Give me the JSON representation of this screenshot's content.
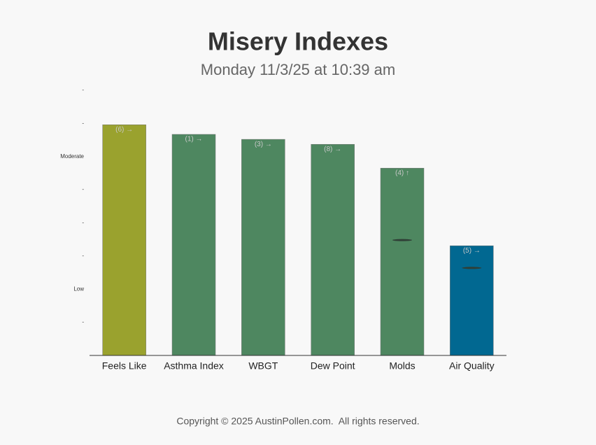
{
  "chart_data": {
    "type": "bar",
    "title": "Misery Indexes",
    "subtitle": "Monday 11/3/25 at 10:39 am",
    "categories": [
      "Feels Like",
      "Asthma Index",
      "WBGT",
      "Dew Point",
      "Molds",
      "Air Quality"
    ],
    "values": [
      6.96,
      6.67,
      6.52,
      6.37,
      5.65,
      3.31
    ],
    "bar_labels": [
      "(6) →",
      "(1) →",
      "(3) →",
      "(8) →",
      "(4) ↑",
      "(5) →"
    ],
    "marker_values": [
      null,
      null,
      null,
      null,
      3.48,
      2.64
    ],
    "colors": [
      "#9aa22e",
      "#4e8760",
      "#4e8760",
      "#4e8760",
      "#4e8760",
      "#016891"
    ],
    "ylim": [
      0,
      8
    ],
    "yticks": [
      {
        "value": 1,
        "label": "-"
      },
      {
        "value": 2,
        "label": "Low"
      },
      {
        "value": 3,
        "label": "-"
      },
      {
        "value": 4,
        "label": "-"
      },
      {
        "value": 5,
        "label": "-"
      },
      {
        "value": 6,
        "label": "Moderate"
      },
      {
        "value": 7,
        "label": "-"
      },
      {
        "value": 8,
        "label": "-"
      }
    ],
    "footer": "Copyright © 2025 AustinPollen.com.  All rights reserved."
  }
}
